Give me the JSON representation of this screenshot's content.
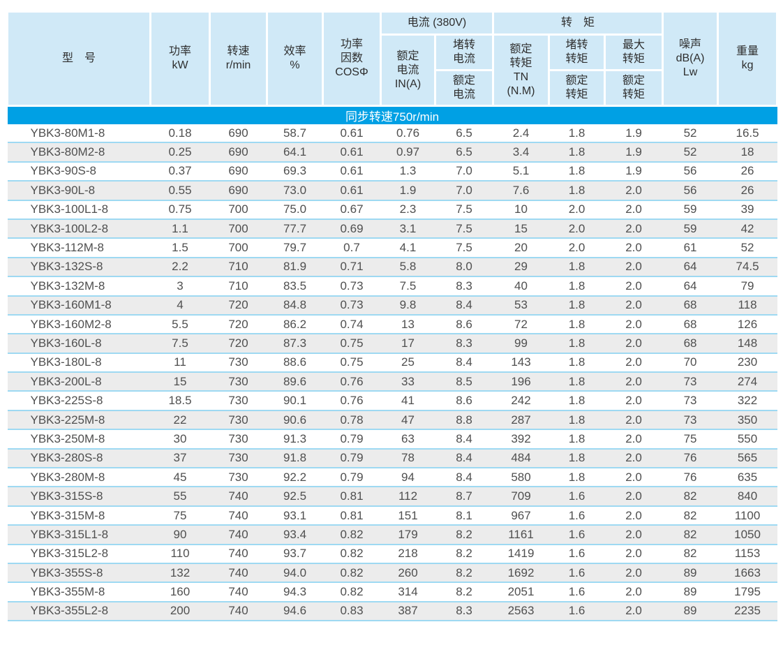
{
  "table": {
    "banner": "同步转速750r/min",
    "header": {
      "model": "型　号",
      "power": "功率\nkW",
      "speed": "转速\nr/min",
      "efficiency": "效率\n%",
      "power_factor": "功率\n因数\nCOSΦ",
      "current_group": "电流 (380V)",
      "torque_group": "转　矩",
      "rated_current": "额定\n电流\nIN(A)",
      "locked_current_num": "堵转\n电流",
      "locked_current_den": "额定\n电流",
      "rated_torque": "额定\n转矩\nTN\n(N.M)",
      "locked_torque_num": "堵转\n转矩",
      "locked_torque_den": "额定\n转矩",
      "max_torque_num": "最大\n转矩",
      "max_torque_den": "额定\n转矩",
      "noise": "噪声\ndB(A)\nLw",
      "weight": "重量\nkg"
    },
    "rows": [
      [
        "YBK3-80M1-8",
        "0.18",
        "690",
        "58.7",
        "0.61",
        "0.76",
        "6.5",
        "2.4",
        "1.8",
        "1.9",
        "52",
        "16.5"
      ],
      [
        "YBK3-80M2-8",
        "0.25",
        "690",
        "64.1",
        "0.61",
        "0.97",
        "6.5",
        "3.4",
        "1.8",
        "1.9",
        "52",
        "18"
      ],
      [
        "YBK3-90S-8",
        "0.37",
        "690",
        "69.3",
        "0.61",
        "1.3",
        "7.0",
        "5.1",
        "1.8",
        "1.9",
        "56",
        "26"
      ],
      [
        "YBK3-90L-8",
        "0.55",
        "690",
        "73.0",
        "0.61",
        "1.9",
        "7.0",
        "7.6",
        "1.8",
        "2.0",
        "56",
        "26"
      ],
      [
        "YBK3-100L1-8",
        "0.75",
        "700",
        "75.0",
        "0.67",
        "2.3",
        "7.5",
        "10",
        "2.0",
        "2.0",
        "59",
        "39"
      ],
      [
        "YBK3-100L2-8",
        "1.1",
        "700",
        "77.7",
        "0.69",
        "3.1",
        "7.5",
        "15",
        "2.0",
        "2.0",
        "59",
        "42"
      ],
      [
        "YBK3-112M-8",
        "1.5",
        "700",
        "79.7",
        "0.7",
        "4.1",
        "7.5",
        "20",
        "2.0",
        "2.0",
        "61",
        "52"
      ],
      [
        "YBK3-132S-8",
        "2.2",
        "710",
        "81.9",
        "0.71",
        "5.8",
        "8.0",
        "29",
        "1.8",
        "2.0",
        "64",
        "74.5"
      ],
      [
        "YBK3-132M-8",
        "3",
        "710",
        "83.5",
        "0.73",
        "7.5",
        "8.3",
        "40",
        "1.8",
        "2.0",
        "64",
        "79"
      ],
      [
        "YBK3-160M1-8",
        "4",
        "720",
        "84.8",
        "0.73",
        "9.8",
        "8.4",
        "53",
        "1.8",
        "2.0",
        "68",
        "118"
      ],
      [
        "YBK3-160M2-8",
        "5.5",
        "720",
        "86.2",
        "0.74",
        "13",
        "8.6",
        "72",
        "1.8",
        "2.0",
        "68",
        "126"
      ],
      [
        "YBK3-160L-8",
        "7.5",
        "720",
        "87.3",
        "0.75",
        "17",
        "8.3",
        "99",
        "1.8",
        "2.0",
        "68",
        "148"
      ],
      [
        "YBK3-180L-8",
        "11",
        "730",
        "88.6",
        "0.75",
        "25",
        "8.4",
        "143",
        "1.8",
        "2.0",
        "70",
        "230"
      ],
      [
        "YBK3-200L-8",
        "15",
        "730",
        "89.6",
        "0.76",
        "33",
        "8.5",
        "196",
        "1.8",
        "2.0",
        "73",
        "274"
      ],
      [
        "YBK3-225S-8",
        "18.5",
        "730",
        "90.1",
        "0.76",
        "41",
        "8.6",
        "242",
        "1.8",
        "2.0",
        "73",
        "322"
      ],
      [
        "YBK3-225M-8",
        "22",
        "730",
        "90.6",
        "0.78",
        "47",
        "8.8",
        "287",
        "1.8",
        "2.0",
        "73",
        "350"
      ],
      [
        "YBK3-250M-8",
        "30",
        "730",
        "91.3",
        "0.79",
        "63",
        "8.4",
        "392",
        "1.8",
        "2.0",
        "75",
        "550"
      ],
      [
        "YBK3-280S-8",
        "37",
        "730",
        "91.8",
        "0.79",
        "78",
        "8.4",
        "484",
        "1.8",
        "2.0",
        "76",
        "565"
      ],
      [
        "YBK3-280M-8",
        "45",
        "730",
        "92.2",
        "0.79",
        "94",
        "8.4",
        "580",
        "1.8",
        "2.0",
        "76",
        "635"
      ],
      [
        "YBK3-315S-8",
        "55",
        "740",
        "92.5",
        "0.81",
        "112",
        "8.7",
        "709",
        "1.6",
        "2.0",
        "82",
        "840"
      ],
      [
        "YBK3-315M-8",
        "75",
        "740",
        "93.1",
        "0.81",
        "151",
        "8.1",
        "967",
        "1.6",
        "2.0",
        "82",
        "1100"
      ],
      [
        "YBK3-315L1-8",
        "90",
        "740",
        "93.4",
        "0.82",
        "179",
        "8.2",
        "1161",
        "1.6",
        "2.0",
        "82",
        "1050"
      ],
      [
        "YBK3-315L2-8",
        "110",
        "740",
        "93.7",
        "0.82",
        "218",
        "8.2",
        "1419",
        "1.6",
        "2.0",
        "82",
        "1153"
      ],
      [
        "YBK3-355S-8",
        "132",
        "740",
        "94.0",
        "0.82",
        "260",
        "8.2",
        "1692",
        "1.6",
        "2.0",
        "89",
        "1663"
      ],
      [
        "YBK3-355M-8",
        "160",
        "740",
        "94.3",
        "0.82",
        "314",
        "8.2",
        "2051",
        "1.6",
        "2.0",
        "89",
        "1795"
      ],
      [
        "YBK3-355L2-8",
        "200",
        "740",
        "94.6",
        "0.83",
        "387",
        "8.3",
        "2563",
        "1.6",
        "2.0",
        "89",
        "2235"
      ]
    ],
    "colors": {
      "header_bg": "#d0e9f7",
      "banner_bg": "#00a0e4",
      "alt_row_bg": "#ececec",
      "row_separator": "#9ed9f2",
      "banner_text": "#ffffff",
      "data_text": "#4f4f4f"
    }
  }
}
